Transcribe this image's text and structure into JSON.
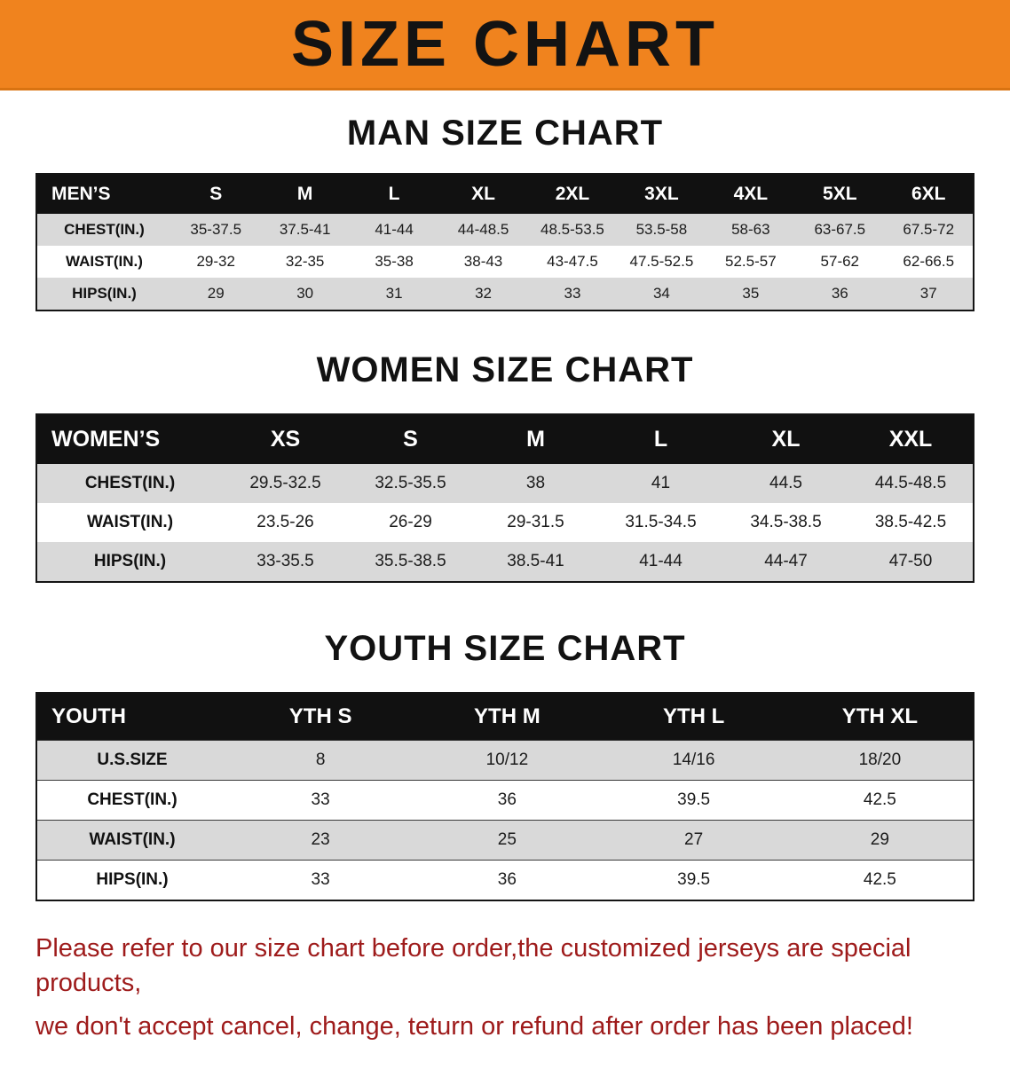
{
  "banner": {
    "title": "SIZE CHART"
  },
  "chart_data": [
    {
      "type": "table",
      "title": "MAN SIZE CHART",
      "columns": [
        "MEN’S",
        "S",
        "M",
        "L",
        "XL",
        "2XL",
        "3XL",
        "4XL",
        "5XL",
        "6XL"
      ],
      "rows": [
        [
          "CHEST(IN.)",
          "35-37.5",
          "37.5-41",
          "41-44",
          "44-48.5",
          "48.5-53.5",
          "53.5-58",
          "58-63",
          "63-67.5",
          "67.5-72"
        ],
        [
          "WAIST(IN.)",
          "29-32",
          "32-35",
          "35-38",
          "38-43",
          "43-47.5",
          "47.5-52.5",
          "52.5-57",
          "57-62",
          "62-66.5"
        ],
        [
          "HIPS(IN.)",
          "29",
          "30",
          "31",
          "32",
          "33",
          "34",
          "35",
          "36",
          "37"
        ]
      ]
    },
    {
      "type": "table",
      "title": "WOMEN SIZE CHART",
      "columns": [
        "WOMEN’S",
        "XS",
        "S",
        "M",
        "L",
        "XL",
        "XXL"
      ],
      "rows": [
        [
          "CHEST(IN.)",
          "29.5-32.5",
          "32.5-35.5",
          "38",
          "41",
          "44.5",
          "44.5-48.5"
        ],
        [
          "WAIST(IN.)",
          "23.5-26",
          "26-29",
          "29-31.5",
          "31.5-34.5",
          "34.5-38.5",
          "38.5-42.5"
        ],
        [
          "HIPS(IN.)",
          "33-35.5",
          "35.5-38.5",
          "38.5-41",
          "41-44",
          "44-47",
          "47-50"
        ]
      ]
    },
    {
      "type": "table",
      "title": "YOUTH SIZE CHART",
      "columns": [
        "YOUTH",
        "YTH S",
        "YTH M",
        "YTH L",
        "YTH XL"
      ],
      "rows": [
        [
          "U.S.SIZE",
          "8",
          "10/12",
          "14/16",
          "18/20"
        ],
        [
          "CHEST(IN.)",
          "33",
          "36",
          "39.5",
          "42.5"
        ],
        [
          "WAIST(IN.)",
          "23",
          "25",
          "27",
          "29"
        ],
        [
          "HIPS(IN.)",
          "33",
          "36",
          "39.5",
          "42.5"
        ]
      ]
    }
  ],
  "footer_note": {
    "line1": "Please refer to our size chart before order,the customized jerseys are special products,",
    "line2": "we don't accept cancel, change, teturn or refund after order has been placed!"
  },
  "colors": {
    "banner_bg": "#f0831e",
    "table_header_bg": "#111111",
    "stripe_row": "#d9d9d9",
    "note_text": "#9e1b1b"
  }
}
